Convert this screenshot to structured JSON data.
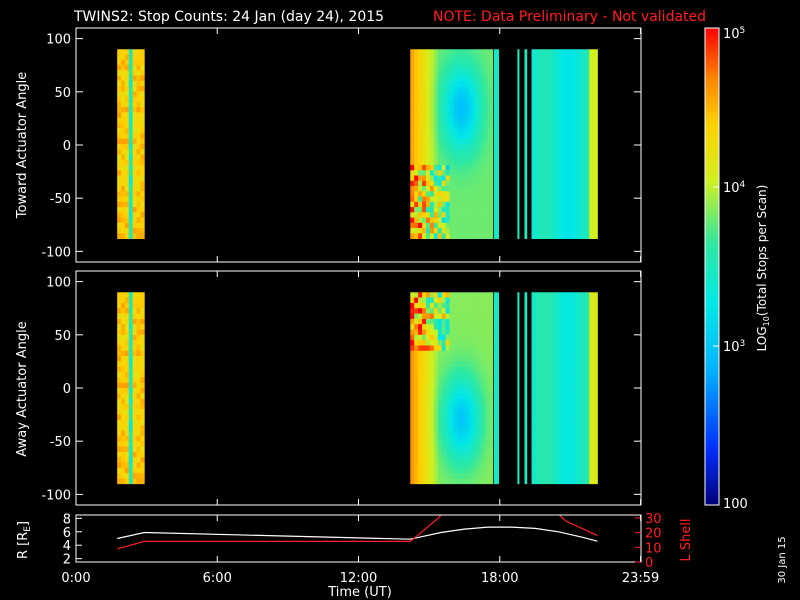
{
  "header": {
    "title": "TWINS2: Stop Counts: 24 Jan (day  24), 2015",
    "note": "NOTE: Data Preliminary - Not validated",
    "note_color": "#ff2020"
  },
  "footer": {
    "date_stamp": "30 Jan 15"
  },
  "colorbar": {
    "label": "LOG10(Total Stops per Scan)",
    "label_main": "LOG",
    "label_sub": "10",
    "label_rest": "(Total Stops per Scan)",
    "ticks": [
      {
        "value": 100,
        "text": "100"
      },
      {
        "value": 1000,
        "base": "10",
        "exp": "3"
      },
      {
        "value": 10000,
        "base": "10",
        "exp": "4"
      },
      {
        "value": 100000,
        "base": "10",
        "exp": "5"
      }
    ]
  },
  "chart_data": [
    {
      "type": "heatmap",
      "title": "Stop Counts",
      "xlabel": "",
      "ylabel": "Toward Actuator Angle",
      "xlim": [
        0,
        24
      ],
      "ylim": [
        -110,
        110
      ],
      "y_ticks": [
        100,
        50,
        0,
        -50,
        -100
      ],
      "y_tick_labels": [
        "100",
        "50",
        "0",
        "-50",
        "-100"
      ],
      "color_scale": "log",
      "zlim": [
        100,
        100000
      ],
      "data_y_range": [
        -88,
        90
      ],
      "intervals": [
        {
          "x_start": 1.75,
          "x_end": 2.9,
          "level": 0.8
        },
        {
          "x_start": 14.2,
          "x_end": 17.7,
          "level": 0.6
        },
        {
          "x_start": 17.75,
          "x_end": 17.95,
          "level": 0.48
        },
        {
          "x_start": 18.75,
          "x_end": 18.82,
          "level": 0.5
        },
        {
          "x_start": 19.05,
          "x_end": 19.15,
          "level": 0.5
        },
        {
          "x_start": 19.35,
          "x_end": 22.15,
          "level": 0.46
        }
      ]
    },
    {
      "type": "heatmap",
      "xlabel": "",
      "ylabel": "Away Actuator Angle",
      "xlim": [
        0,
        24
      ],
      "ylim": [
        -110,
        110
      ],
      "y_ticks": [
        100,
        50,
        0,
        -50,
        -100
      ],
      "y_tick_labels": [
        "100",
        "50",
        "0",
        "-50",
        "-100"
      ],
      "color_scale": "log",
      "zlim": [
        100,
        100000
      ],
      "data_y_range": [
        -90,
        90
      ],
      "intervals": [
        {
          "x_start": 1.75,
          "x_end": 2.9,
          "level": 0.8
        },
        {
          "x_start": 14.2,
          "x_end": 17.7,
          "level": 0.62
        },
        {
          "x_start": 17.75,
          "x_end": 17.95,
          "level": 0.48
        },
        {
          "x_start": 18.75,
          "x_end": 18.82,
          "level": 0.5
        },
        {
          "x_start": 19.05,
          "x_end": 19.15,
          "level": 0.5
        },
        {
          "x_start": 19.35,
          "x_end": 22.15,
          "level": 0.48
        }
      ]
    },
    {
      "type": "line",
      "xlabel": "Time (UT)",
      "ylabel": "R [RE]",
      "ylabel_main": "R [R",
      "ylabel_sub": "E",
      "ylabel_end": "]",
      "y2label": "L Shell",
      "xlim": [
        0,
        24
      ],
      "x_ticks": [
        0,
        6,
        12,
        18,
        23.983
      ],
      "x_tick_labels": [
        "0:00",
        "6:00",
        "12:00",
        "18:00",
        "23:59"
      ],
      "ylim": [
        1.5,
        8.5
      ],
      "y_ticks": [
        2,
        4,
        6,
        8
      ],
      "y_tick_labels": [
        "2",
        "4",
        "6",
        "8"
      ],
      "y2lim": [
        0,
        32
      ],
      "y2_ticks": [
        0,
        10,
        20,
        30
      ],
      "y2_tick_labels": [
        "0",
        "10",
        "20",
        "30"
      ],
      "series": [
        {
          "color": "#ffffff",
          "axis": "left",
          "x": [
            1.75,
            2.9,
            14.2,
            15.5,
            16.5,
            17.5,
            18.5,
            19.5,
            20.5,
            21.5,
            22.15
          ],
          "y": [
            5.0,
            5.9,
            4.9,
            5.9,
            6.4,
            6.7,
            6.7,
            6.5,
            6.0,
            5.2,
            4.6
          ]
        },
        {
          "color": "#ff2020",
          "axis": "right",
          "x": [
            1.75,
            2.9,
            14.2,
            15.4,
            15.6
          ],
          "y": [
            9,
            14,
            14,
            30,
            34
          ],
          "x2": [
            20.4,
            20.8,
            22.15
          ],
          "y2": [
            34,
            28,
            18
          ]
        }
      ]
    }
  ]
}
